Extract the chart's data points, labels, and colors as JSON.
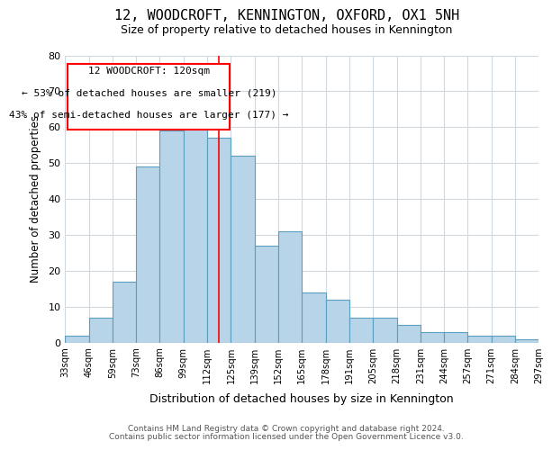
{
  "title": "12, WOODCROFT, KENNINGTON, OXFORD, OX1 5NH",
  "subtitle": "Size of property relative to detached houses in Kennington",
  "xlabel": "Distribution of detached houses by size in Kennington",
  "ylabel": "Number of detached properties",
  "bin_labels": [
    "33sqm",
    "46sqm",
    "59sqm",
    "73sqm",
    "86sqm",
    "99sqm",
    "112sqm",
    "125sqm",
    "139sqm",
    "152sqm",
    "165sqm",
    "178sqm",
    "191sqm",
    "205sqm",
    "218sqm",
    "231sqm",
    "244sqm",
    "257sqm",
    "271sqm",
    "284sqm",
    "297sqm"
  ],
  "bar_values": [
    2,
    7,
    17,
    49,
    59,
    62,
    57,
    52,
    27,
    31,
    14,
    12,
    7,
    7,
    5,
    3,
    3,
    2,
    2,
    1
  ],
  "bar_color": "#b8d4e8",
  "bar_edge_color": "#5a9fc0",
  "ylim": [
    0,
    80
  ],
  "yticks": [
    0,
    10,
    20,
    30,
    40,
    50,
    60,
    70,
    80
  ],
  "property_line_x": 6.5,
  "annotation_text_line1": "12 WOODCROFT: 120sqm",
  "annotation_text_line2": "← 53% of detached houses are smaller (219)",
  "annotation_text_line3": "43% of semi-detached houses are larger (177) →",
  "footer_line1": "Contains HM Land Registry data © Crown copyright and database right 2024.",
  "footer_line2": "Contains public sector information licensed under the Open Government Licence v3.0.",
  "background_color": "#ffffff",
  "grid_color": "#d0d8e0"
}
